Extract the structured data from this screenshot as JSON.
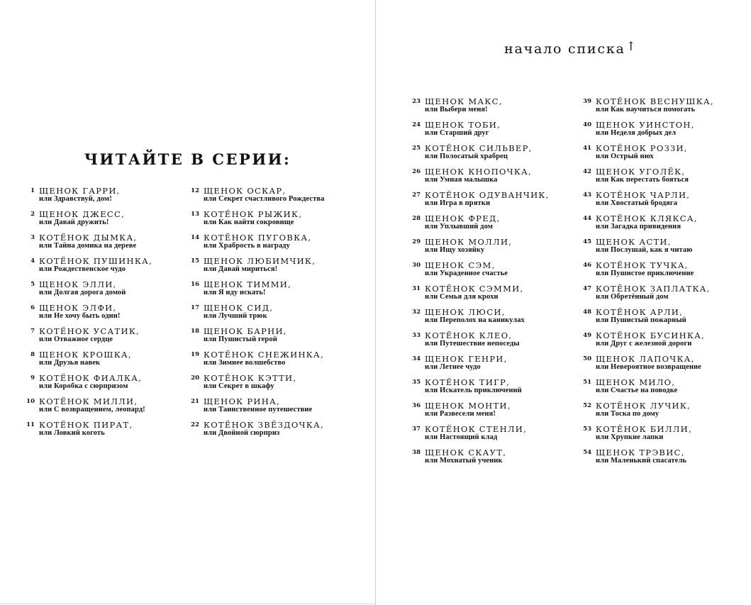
{
  "left_page": {
    "heading": "ЧИТАЙТЕ В СЕРИИ:",
    "columns": [
      [
        {
          "num": "1",
          "title": "ЩЕНОК ГАРРИ,",
          "subtitle": "или Здравствуй, дом!"
        },
        {
          "num": "2",
          "title": "ЩЕНОК ДЖЕСС,",
          "subtitle": "или Давай дружить!"
        },
        {
          "num": "3",
          "title": "КОТЁНОК ДЫМКА,",
          "subtitle": "или Тайна домика на дереве"
        },
        {
          "num": "4",
          "title": "КОТЁНОК ПУШИНКА,",
          "subtitle": "или Рождественское чудо"
        },
        {
          "num": "5",
          "title": "ЩЕНОК ЭЛЛИ,",
          "subtitle": "или Долгая дорога домой"
        },
        {
          "num": "6",
          "title": "ЩЕНОК ЭЛФИ,",
          "subtitle": "или Не хочу быть один!"
        },
        {
          "num": "7",
          "title": "КОТЁНОК УСАТИК,",
          "subtitle": "или Отважное сердце"
        },
        {
          "num": "8",
          "title": "ЩЕНОК КРОШКА,",
          "subtitle": "или Друзья навек"
        },
        {
          "num": "9",
          "title": "КОТЁНОК ФИАЛКА,",
          "subtitle": "или Коробка с сюрпризом"
        },
        {
          "num": "10",
          "title": "КОТЁНОК МИЛЛИ,",
          "subtitle": "или С возвращением, леопард!"
        },
        {
          "num": "11",
          "title": "КОТЁНОК ПИРАТ,",
          "subtitle": "или Ловкий коготь"
        }
      ],
      [
        {
          "num": "12",
          "title": "ЩЕНОК ОСКАР,",
          "subtitle": "или Секрет счастливого Рождества"
        },
        {
          "num": "13",
          "title": "КОТЁНОК РЫЖИК,",
          "subtitle": "или Как найти сокровище"
        },
        {
          "num": "14",
          "title": "КОТЁНОК ПУГОВКА,",
          "subtitle": "или Храбрость в награду"
        },
        {
          "num": "15",
          "title": "ЩЕНОК ЛЮБИМЧИК,",
          "subtitle": "или Давай мириться!"
        },
        {
          "num": "16",
          "title": "ЩЕНОК ТИММИ,",
          "subtitle": "или Я иду искать!"
        },
        {
          "num": "17",
          "title": "ЩЕНОК СИД,",
          "subtitle": "или Лучший трюк"
        },
        {
          "num": "18",
          "title": "ЩЕНОК БАРНИ,",
          "subtitle": "или Пушистый герой"
        },
        {
          "num": "19",
          "title": "КОТЁНОК СНЕЖИНКА,",
          "subtitle": "или Зимнее волшебство"
        },
        {
          "num": "20",
          "title": "КОТЁНОК КЭТТИ,",
          "subtitle": "или Секрет в шкафу"
        },
        {
          "num": "21",
          "title": "ЩЕНОК РИНА,",
          "subtitle": "или Таинственное путешествие"
        },
        {
          "num": "22",
          "title": "КОТЁНОК ЗВЁЗДОЧКА,",
          "subtitle": "или Двойной сюрприз"
        }
      ]
    ]
  },
  "right_page": {
    "top_note": "начало списка",
    "top_note_icon": "arrow-up-icon",
    "columns": [
      [
        {
          "num": "23",
          "title": "ЩЕНОК МАКС,",
          "subtitle": "или Выбери меня!"
        },
        {
          "num": "24",
          "title": "ЩЕНОК ТОБИ,",
          "subtitle": "или Старший друг"
        },
        {
          "num": "25",
          "title": "КОТЁНОК СИЛЬВЕР,",
          "subtitle": "или Полосатый храбрец"
        },
        {
          "num": "26",
          "title": "ЩЕНОК КНОПОЧКА,",
          "subtitle": "или Умная малышка"
        },
        {
          "num": "27",
          "title": "КОТЁНОК ОДУВАНЧИК,",
          "subtitle": "или Игра в прятки"
        },
        {
          "num": "28",
          "title": "ЩЕНОК ФРЕД,",
          "subtitle": "или Уплывший дом"
        },
        {
          "num": "29",
          "title": "ЩЕНОК МОЛЛИ,",
          "subtitle": "или Ищу хозяйку"
        },
        {
          "num": "30",
          "title": "ЩЕНОК СЭМ,",
          "subtitle": "или Украденное счастье"
        },
        {
          "num": "31",
          "title": "КОТЁНОК СЭММИ,",
          "subtitle": "или Семья для крохи"
        },
        {
          "num": "32",
          "title": "ЩЕНОК ЛЮСИ,",
          "subtitle": "или Переполох на каникулах"
        },
        {
          "num": "33",
          "title": "КОТЁНОК КЛЕО,",
          "subtitle": "или Путешествие непоседы"
        },
        {
          "num": "34",
          "title": "ЩЕНОК ГЕНРИ,",
          "subtitle": "или Летнее чудо"
        },
        {
          "num": "35",
          "title": "КОТЁНОК ТИГР,",
          "subtitle": "или Искатель приключений"
        },
        {
          "num": "36",
          "title": "ЩЕНОК МОНТИ,",
          "subtitle": "или Развесели меня!"
        },
        {
          "num": "37",
          "title": "КОТЁНОК СТЕНЛИ,",
          "subtitle": "или Настоящий клад"
        },
        {
          "num": "38",
          "title": "ЩЕНОК СКАУТ,",
          "subtitle": "или Мохнатый ученик"
        }
      ],
      [
        {
          "num": "39",
          "title": "КОТЁНОК ВЕСНУШКА,",
          "subtitle": "или Как научиться помогать"
        },
        {
          "num": "40",
          "title": "ЩЕНОК УИНСТОН,",
          "subtitle": "или Неделя добрых дел"
        },
        {
          "num": "41",
          "title": "КОТЁНОК РОЗЗИ,",
          "subtitle": "или Острый нюх"
        },
        {
          "num": "42",
          "title": "ЩЕНОК УГОЛЁК,",
          "subtitle": "или Как перестать бояться"
        },
        {
          "num": "43",
          "title": "КОТЁНОК ЧАРЛИ,",
          "subtitle": "или Хвостатый бродяга"
        },
        {
          "num": "44",
          "title": "КОТЁНОК КЛЯКСА,",
          "subtitle": "или Загадка привидения"
        },
        {
          "num": "45",
          "title": "ЩЕНОК АСТИ,",
          "subtitle": "или Послушай, как я читаю"
        },
        {
          "num": "46",
          "title": "КОТЁНОК ТУЧКА,",
          "subtitle": "или Пушистое приключение"
        },
        {
          "num": "47",
          "title": "КОТЁНОК ЗАПЛАТКА,",
          "subtitle": "или Обретённый дом"
        },
        {
          "num": "48",
          "title": "КОТЁНОК АРЛИ,",
          "subtitle": "или Пушистый пожарный"
        },
        {
          "num": "49",
          "title": "КОТЁНОК БУСИНКА,",
          "subtitle": "или Друг с железной дороги"
        },
        {
          "num": "50",
          "title": "ЩЕНОК ЛАПОЧКА,",
          "subtitle": "или Невероятное возвращение"
        },
        {
          "num": "51",
          "title": "ЩЕНОК МИЛО,",
          "subtitle": "или Счастье на поводке"
        },
        {
          "num": "52",
          "title": "КОТЁНОК ЛУЧИК,",
          "subtitle": "или Тоска по дому"
        },
        {
          "num": "53",
          "title": "КОТЁНОК БИЛЛИ,",
          "subtitle": "или Хрупкие лапки"
        },
        {
          "num": "54",
          "title": "ЩЕНОК ТРЭВИС,",
          "subtitle": "или Маленький спасатель"
        }
      ]
    ]
  }
}
